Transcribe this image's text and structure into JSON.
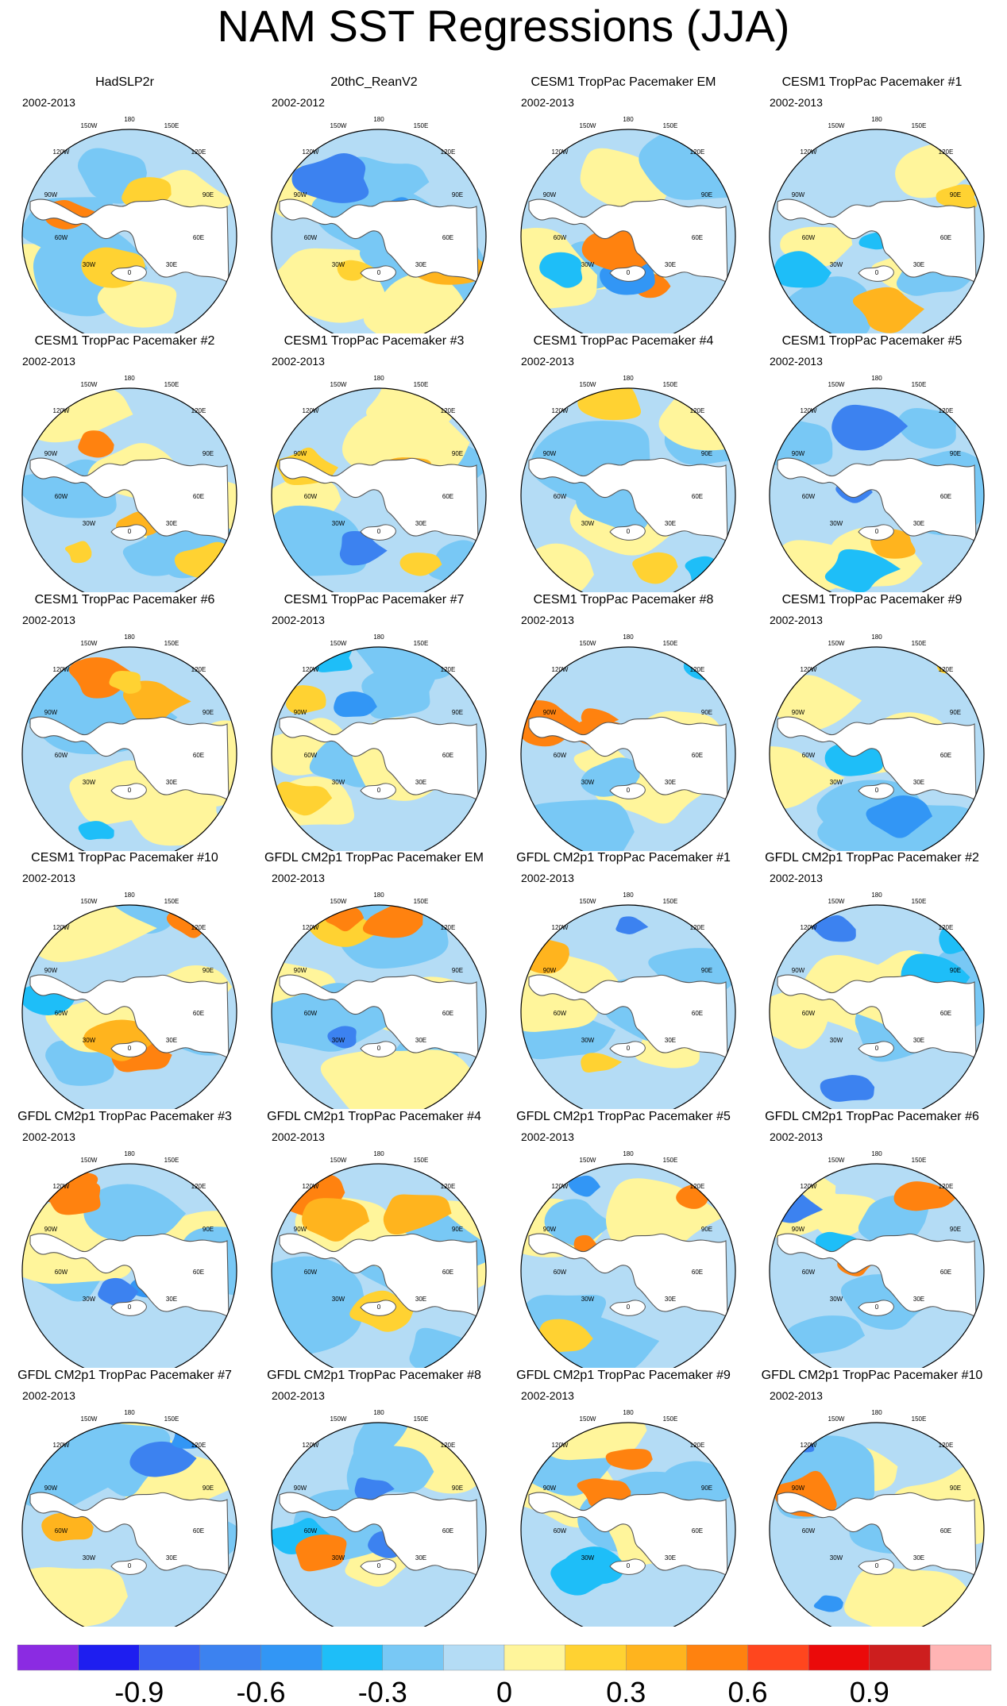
{
  "chart_data": {
    "type": "polar-stereographic map panels",
    "title": "NAM SST Regressions (JJA)",
    "projection_labels": [
      "180",
      "150W",
      "150E",
      "120W",
      "120E",
      "90W",
      "90E",
      "60W",
      "60E",
      "30W",
      "30E",
      "0"
    ],
    "colorbar": {
      "levels": [
        -1.05,
        -0.9,
        -0.75,
        -0.6,
        -0.45,
        -0.3,
        -0.15,
        0,
        0.15,
        0.3,
        0.45,
        0.6,
        0.75,
        0.9,
        1.05
      ],
      "tick_labels": [
        "-0.9",
        "-0.6",
        "-0.3",
        "0",
        "0.3",
        "0.6",
        "0.9"
      ],
      "tick_values": [
        -0.9,
        -0.6,
        -0.3,
        0,
        0.3,
        0.6,
        0.9
      ],
      "colors": [
        "#8b2be2",
        "#1e1ef0",
        "#3c64f0",
        "#3c82f0",
        "#3296f5",
        "#1ebef8",
        "#78c8f5",
        "#b4dcf5",
        "#fff59b",
        "#ffd232",
        "#ffb41e",
        "#ff820f",
        "#ff461e",
        "#eb0a0a",
        "#cd1e1e",
        "#ffb4b4"
      ]
    },
    "panels": [
      {
        "title": "HadSLP2r",
        "period": "2002-2013"
      },
      {
        "title": "20thC_ReanV2",
        "period": "2002-2012"
      },
      {
        "title": "CESM1 TropPac Pacemaker EM",
        "period": "2002-2013"
      },
      {
        "title": "CESM1 TropPac Pacemaker #1",
        "period": "2002-2013"
      },
      {
        "title": "CESM1 TropPac Pacemaker #2",
        "period": "2002-2013"
      },
      {
        "title": "CESM1 TropPac Pacemaker #3",
        "period": "2002-2013"
      },
      {
        "title": "CESM1 TropPac Pacemaker #4",
        "period": "2002-2013"
      },
      {
        "title": "CESM1 TropPac Pacemaker #5",
        "period": "2002-2013"
      },
      {
        "title": "CESM1 TropPac Pacemaker #6",
        "period": "2002-2013"
      },
      {
        "title": "CESM1 TropPac Pacemaker #7",
        "period": "2002-2013"
      },
      {
        "title": "CESM1 TropPac Pacemaker #8",
        "period": "2002-2013"
      },
      {
        "title": "CESM1 TropPac Pacemaker #9",
        "period": "2002-2013"
      },
      {
        "title": "CESM1 TropPac Pacemaker #10",
        "period": "2002-2013"
      },
      {
        "title": "GFDL CM2p1 TropPac Pacemaker EM",
        "period": "2002-2013"
      },
      {
        "title": "GFDL CM2p1 TropPac Pacemaker #1",
        "period": "2002-2013"
      },
      {
        "title": "GFDL CM2p1 TropPac Pacemaker #2",
        "period": "2002-2013"
      },
      {
        "title": "GFDL CM2p1 TropPac Pacemaker #3",
        "period": "2002-2013"
      },
      {
        "title": "GFDL CM2p1 TropPac Pacemaker #4",
        "period": "2002-2013"
      },
      {
        "title": "GFDL CM2p1 TropPac Pacemaker #5",
        "period": "2002-2013"
      },
      {
        "title": "GFDL CM2p1 TropPac Pacemaker #6",
        "period": "2002-2013"
      },
      {
        "title": "GFDL CM2p1 TropPac Pacemaker #7",
        "period": "2002-2013"
      },
      {
        "title": "GFDL CM2p1 TropPac Pacemaker #8",
        "period": "2002-2013"
      },
      {
        "title": "GFDL CM2p1 TropPac Pacemaker #9",
        "period": "2002-2013"
      },
      {
        "title": "GFDL CM2p1 TropPac Pacemaker #10",
        "period": "2002-2013"
      }
    ]
  }
}
